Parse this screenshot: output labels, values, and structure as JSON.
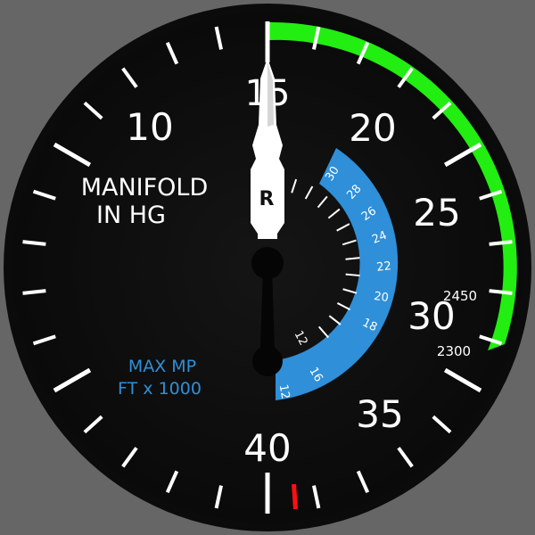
{
  "instrument": {
    "title_line1": "MANIFOLD",
    "title_line2": "IN HG",
    "subtitle_line1": "MAX MP",
    "subtitle_line2": "FT x 1000",
    "rpm_high": "2450",
    "rpm_low": "2300",
    "needle_letter": "R"
  },
  "main_scale": {
    "min": 10,
    "max": 40,
    "labels": [
      "10",
      "15",
      "20",
      "25",
      "30",
      "35",
      "40"
    ],
    "green_arc": [
      15,
      29.7
    ],
    "red_mark": 40.7,
    "needle_value": 15
  },
  "altitude_scale": {
    "labels": [
      "12",
      "16",
      "18",
      "20",
      "22",
      "24",
      "26",
      "28",
      "30"
    ],
    "inner_labels": [
      "12"
    ]
  },
  "colors": {
    "bezel": "#666666",
    "face": "#111111",
    "green": "#22ee11",
    "blue": "#2f8fd8",
    "red": "#ff1010",
    "white": "#ffffff"
  }
}
